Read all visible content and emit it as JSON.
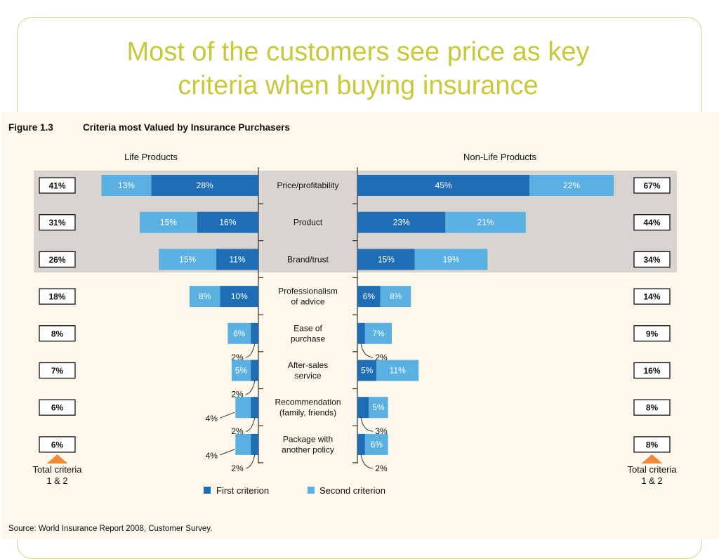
{
  "slide": {
    "title_line1": "Most of the customers see price as key",
    "title_line2": "criteria when buying insurance"
  },
  "figure": {
    "number": "Figure 1.3",
    "caption": "Criteria most Valued by Insurance Purchasers",
    "source": "Source: World Insurance Report 2008, Customer Survey."
  },
  "colors": {
    "first": "#1f6db5",
    "second": "#5ab0e0",
    "highlight": "#d9d4cf",
    "title": "#c8c83a",
    "arrow": "#ef8a3a"
  },
  "chart_data": {
    "type": "bar",
    "orientation": "horizontal-diverging",
    "groups": [
      "Life Products",
      "Non-Life Products"
    ],
    "categories": [
      [
        "Price/profitability"
      ],
      [
        "Product"
      ],
      [
        "Brand/trust"
      ],
      [
        "Professionalism",
        "of advice"
      ],
      [
        "Ease of",
        "purchase"
      ],
      [
        "After-sales",
        "service"
      ],
      [
        "Recommendation",
        "(family, friends)"
      ],
      [
        "Package with",
        "another policy"
      ]
    ],
    "series": [
      {
        "name": "First criterion",
        "life": [
          28,
          16,
          11,
          10,
          2,
          2,
          2,
          2
        ],
        "nonlife": [
          45,
          23,
          15,
          6,
          2,
          5,
          3,
          2
        ]
      },
      {
        "name": "Second criterion",
        "life": [
          13,
          15,
          15,
          8,
          6,
          5,
          4,
          4
        ],
        "nonlife": [
          22,
          21,
          19,
          8,
          7,
          11,
          5,
          6
        ]
      }
    ],
    "life_totals": [
      "41%",
      "31%",
      "26%",
      "18%",
      "8%",
      "7%",
      "6%",
      "6%"
    ],
    "nonlife_totals": [
      "67%",
      "44%",
      "34%",
      "14%",
      "9%",
      "16%",
      "8%",
      "8%"
    ],
    "total_label_line1": "Total criteria",
    "total_label_line2": "1 & 2",
    "highlighted_rows": 3,
    "legend_position": "bottom"
  }
}
